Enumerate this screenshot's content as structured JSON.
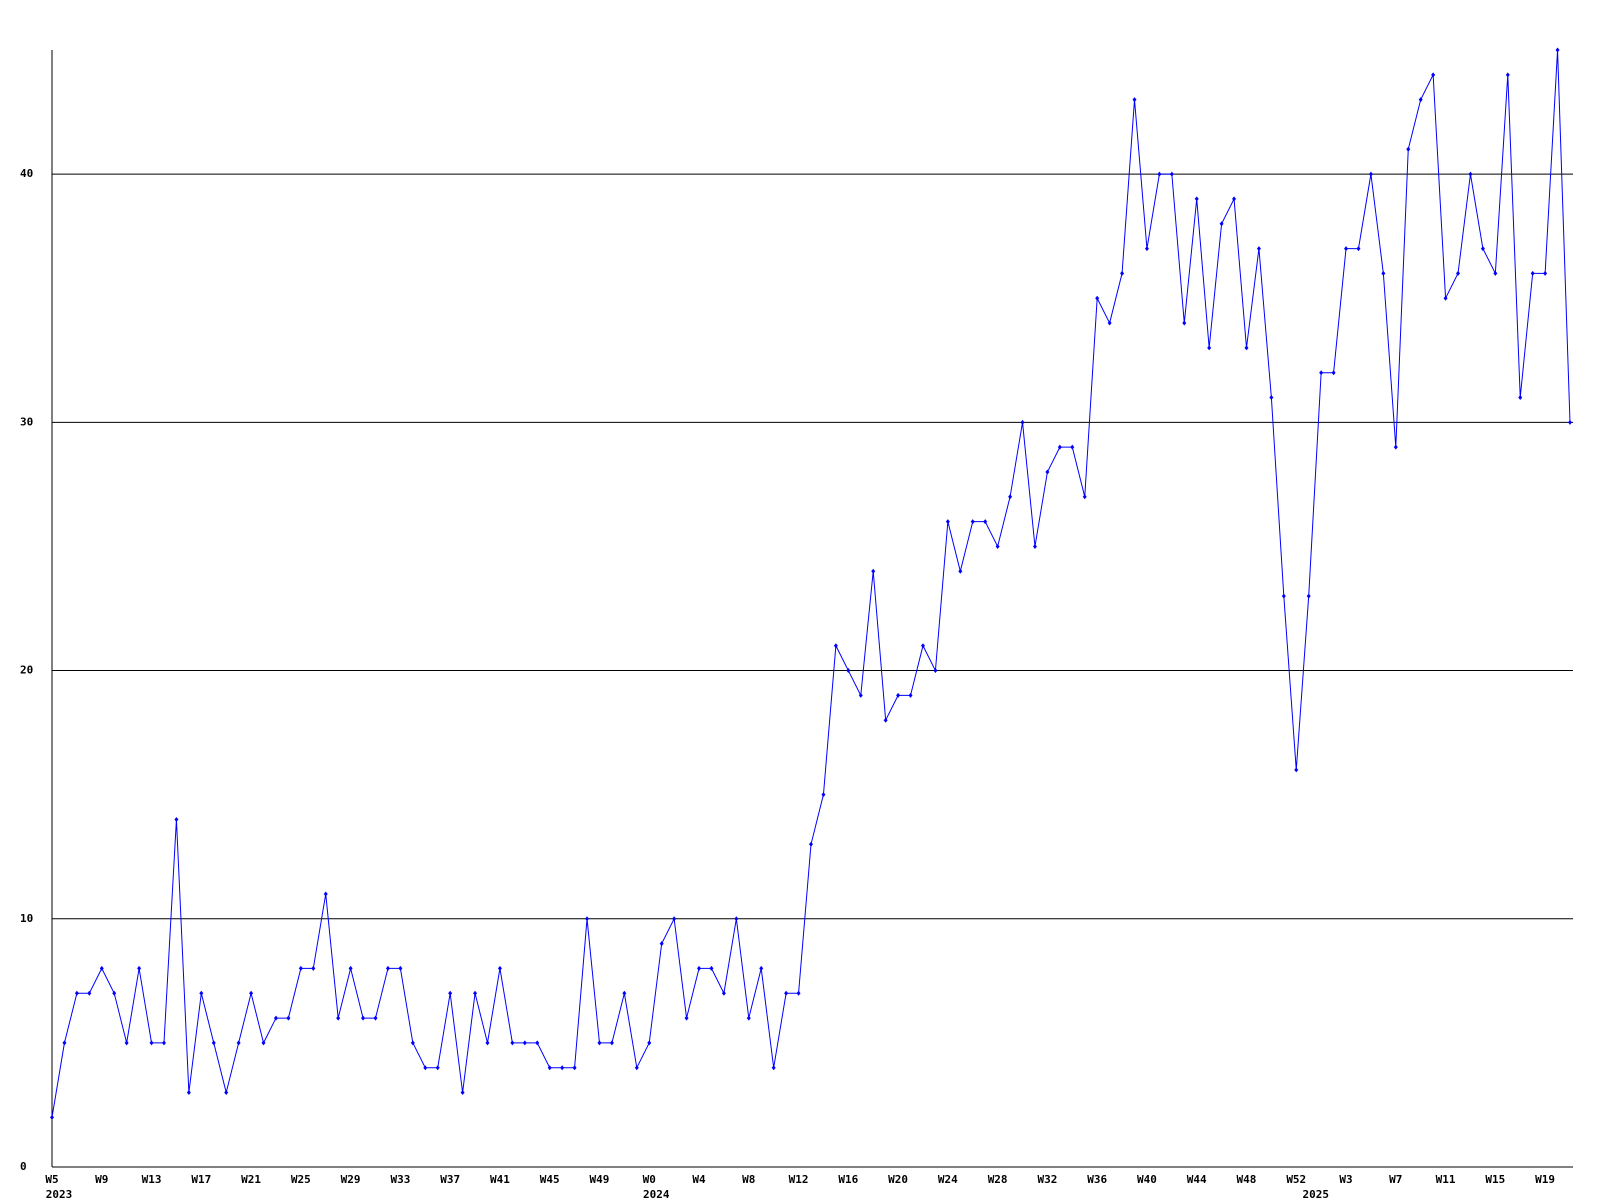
{
  "chart_data": {
    "type": "line",
    "categories": [
      "W5",
      null,
      null,
      null,
      "W9",
      null,
      null,
      null,
      "W13",
      null,
      null,
      null,
      "W17",
      null,
      null,
      null,
      "W21",
      null,
      null,
      null,
      "W25",
      null,
      null,
      null,
      "W29",
      null,
      null,
      null,
      "W33",
      null,
      null,
      null,
      "W37",
      null,
      null,
      null,
      "W41",
      null,
      null,
      null,
      "W45",
      null,
      null,
      null,
      "W49",
      null,
      null,
      null,
      "W0",
      null,
      null,
      null,
      "W4",
      null,
      null,
      null,
      "W8",
      null,
      null,
      null,
      "W12",
      null,
      null,
      null,
      "W16",
      null,
      null,
      null,
      "W20",
      null,
      null,
      null,
      "W24",
      null,
      null,
      null,
      "W28",
      null,
      null,
      null,
      "W32",
      null,
      null,
      null,
      "W36",
      null,
      null,
      null,
      "W40",
      null,
      null,
      null,
      "W44",
      null,
      null,
      null,
      "W48",
      null,
      null,
      null,
      "W52",
      null,
      null,
      null,
      "W3",
      null,
      null,
      null,
      "W7",
      null,
      null,
      null,
      "W11",
      null,
      null,
      null,
      "W15",
      null,
      null,
      null,
      "W19",
      null,
      null
    ],
    "category_years": [
      "2023",
      null,
      null,
      null,
      null,
      null,
      null,
      null,
      null,
      null,
      null,
      null,
      null,
      null,
      null,
      null,
      null,
      null,
      null,
      null,
      null,
      null,
      null,
      null,
      null,
      null,
      null,
      null,
      null,
      null,
      null,
      null,
      null,
      null,
      null,
      null,
      null,
      null,
      null,
      null,
      null,
      null,
      null,
      null,
      null,
      null,
      null,
      null,
      "2024",
      null,
      null,
      null,
      null,
      null,
      null,
      null,
      null,
      null,
      null,
      null,
      null,
      null,
      null,
      null,
      null,
      null,
      null,
      null,
      null,
      null,
      null,
      null,
      null,
      null,
      null,
      null,
      null,
      null,
      null,
      null,
      null,
      null,
      null,
      null,
      null,
      null,
      null,
      null,
      null,
      null,
      null,
      null,
      null,
      null,
      null,
      null,
      null,
      null,
      null,
      null,
      null,
      "2025",
      null,
      null,
      null,
      null,
      null,
      null,
      null,
      null,
      null,
      null,
      null,
      null,
      null,
      null,
      null,
      null,
      null,
      null,
      null,
      null
    ],
    "values": [
      2,
      5,
      7,
      7,
      8,
      7,
      5,
      8,
      5,
      5,
      14,
      3,
      7,
      5,
      3,
      5,
      7,
      5,
      6,
      6,
      8,
      8,
      11,
      6,
      8,
      6,
      6,
      8,
      8,
      5,
      4,
      4,
      7,
      3,
      7,
      5,
      8,
      5,
      5,
      5,
      4,
      4,
      4,
      10,
      5,
      5,
      7,
      4,
      5,
      9,
      10,
      6,
      8,
      8,
      7,
      10,
      6,
      8,
      4,
      7,
      7,
      13,
      15,
      21,
      20,
      19,
      24,
      18,
      19,
      19,
      21,
      20,
      26,
      24,
      26,
      26,
      25,
      27,
      30,
      25,
      28,
      29,
      29,
      27,
      35,
      34,
      36,
      43,
      37,
      40,
      40,
      34,
      39,
      33,
      38,
      39,
      33,
      37,
      31,
      23,
      16,
      23,
      32,
      32,
      37,
      37,
      40,
      36,
      29,
      41,
      43,
      44,
      35,
      36,
      40,
      37,
      36,
      44,
      31,
      36,
      36,
      45,
      30
    ],
    "color": "#0000ff",
    "ylim": [
      0,
      45
    ],
    "yticks": [
      0,
      10,
      20,
      30,
      40
    ],
    "grid": true
  }
}
